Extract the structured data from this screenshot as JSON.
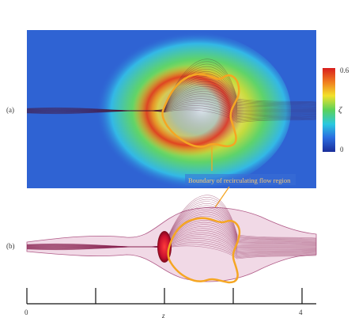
{
  "panel_a": {
    "label": "(a)"
  },
  "panel_b": {
    "label": "(b)"
  },
  "annotation": {
    "text": "Boundary of recirculating flow region"
  },
  "colorbar": {
    "max_label": "0.6",
    "min_label": "0",
    "symbol": "ζ",
    "colors": [
      "#1a2d9a",
      "#2b6de0",
      "#29c8e0",
      "#5ad25a",
      "#f2e12a",
      "#f07e1f",
      "#d81e1e"
    ]
  },
  "axis": {
    "ticks": [
      "0",
      "4"
    ],
    "label": "z"
  },
  "colors": {
    "boundary": "#f5a623",
    "streamline": "#8a2452",
    "field_bg": "#2f63d3",
    "vortex_core": "#c8102e"
  }
}
